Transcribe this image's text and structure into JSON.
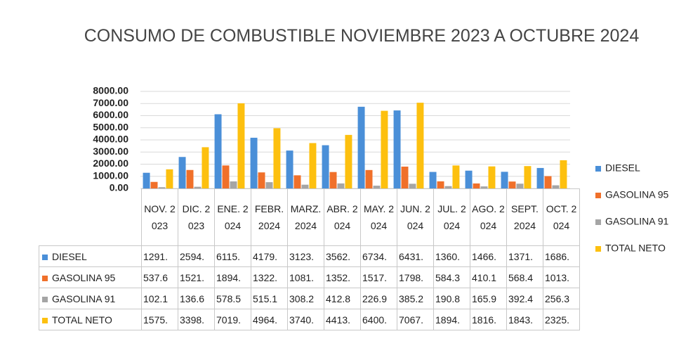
{
  "chart_data": {
    "type": "bar",
    "title": "CONSUMO DE COMBUSTIBLE NOVIEMBRE 2023 A OCTUBRE 2024",
    "categories": [
      "NOV. 2023",
      "DIC. 2023",
      "ENE. 2024",
      "FEBR. 2024",
      "MARZ. 2024",
      "ABR. 2024",
      "MAY. 2024",
      "JUN. 2024",
      "JUL. 2024",
      "AGO. 2024",
      "SEPT. 2024",
      "OCT. 2024"
    ],
    "series": [
      {
        "name": "DIESEL",
        "color": "#4a8fd8",
        "values": [
          1291,
          2594,
          6115,
          4179,
          3123,
          3562,
          6734,
          6431,
          1360,
          1466,
          1371,
          1686
        ],
        "value_labels": [
          "1291.",
          "2594.",
          "6115.",
          "4179.",
          "3123.",
          "3562.",
          "6734.",
          "6431.",
          "1360.",
          "1466.",
          "1371.",
          "1686."
        ]
      },
      {
        "name": "GASOLINA 95",
        "color": "#f0702a",
        "values": [
          537.6,
          1521,
          1894,
          1322,
          1081,
          1352,
          1517,
          1798,
          584.3,
          410.1,
          568.4,
          1013
        ],
        "value_labels": [
          "537.6",
          "1521.",
          "1894.",
          "1322.",
          "1081.",
          "1352.",
          "1517.",
          "1798.",
          "584.3",
          "410.1",
          "568.4",
          "1013."
        ]
      },
      {
        "name": "GASOLINA 91",
        "color": "#a5a5a5",
        "values": [
          102.1,
          136.6,
          578.5,
          515.1,
          308.2,
          412.8,
          226.9,
          385.2,
          190.8,
          165.9,
          392.4,
          256.3
        ],
        "value_labels": [
          "102.1",
          "136.6",
          "578.5",
          "515.1",
          "308.2",
          "412.8",
          "226.9",
          "385.2",
          "190.8",
          "165.9",
          "392.4",
          "256.3"
        ]
      },
      {
        "name": "TOTAL NETO",
        "color": "#fdc00f",
        "values": [
          1575,
          3398,
          7019,
          4964,
          3740,
          4413,
          6400,
          7067,
          1894,
          1816,
          1843,
          2325
        ],
        "value_labels": [
          "1575.",
          "3398.",
          "7019.",
          "4964.",
          "3740.",
          "4413.",
          "6400.",
          "7067.",
          "1894.",
          "1816.",
          "1843.",
          "2325."
        ]
      }
    ],
    "ylim": [
      0,
      8000
    ],
    "yticks": [
      {
        "value": 0,
        "label": "0.00"
      },
      {
        "value": 1000,
        "label": "1000.00"
      },
      {
        "value": 2000,
        "label": "2000.00"
      },
      {
        "value": 3000,
        "label": "3000.00"
      },
      {
        "value": 4000,
        "label": "4000.00"
      },
      {
        "value": 5000,
        "label": "5000.00"
      },
      {
        "value": 6000,
        "label": "6000.00"
      },
      {
        "value": 7000,
        "label": "7000.00"
      },
      {
        "value": 8000,
        "label": "8000.00"
      }
    ],
    "grid": true,
    "legend": "right"
  }
}
